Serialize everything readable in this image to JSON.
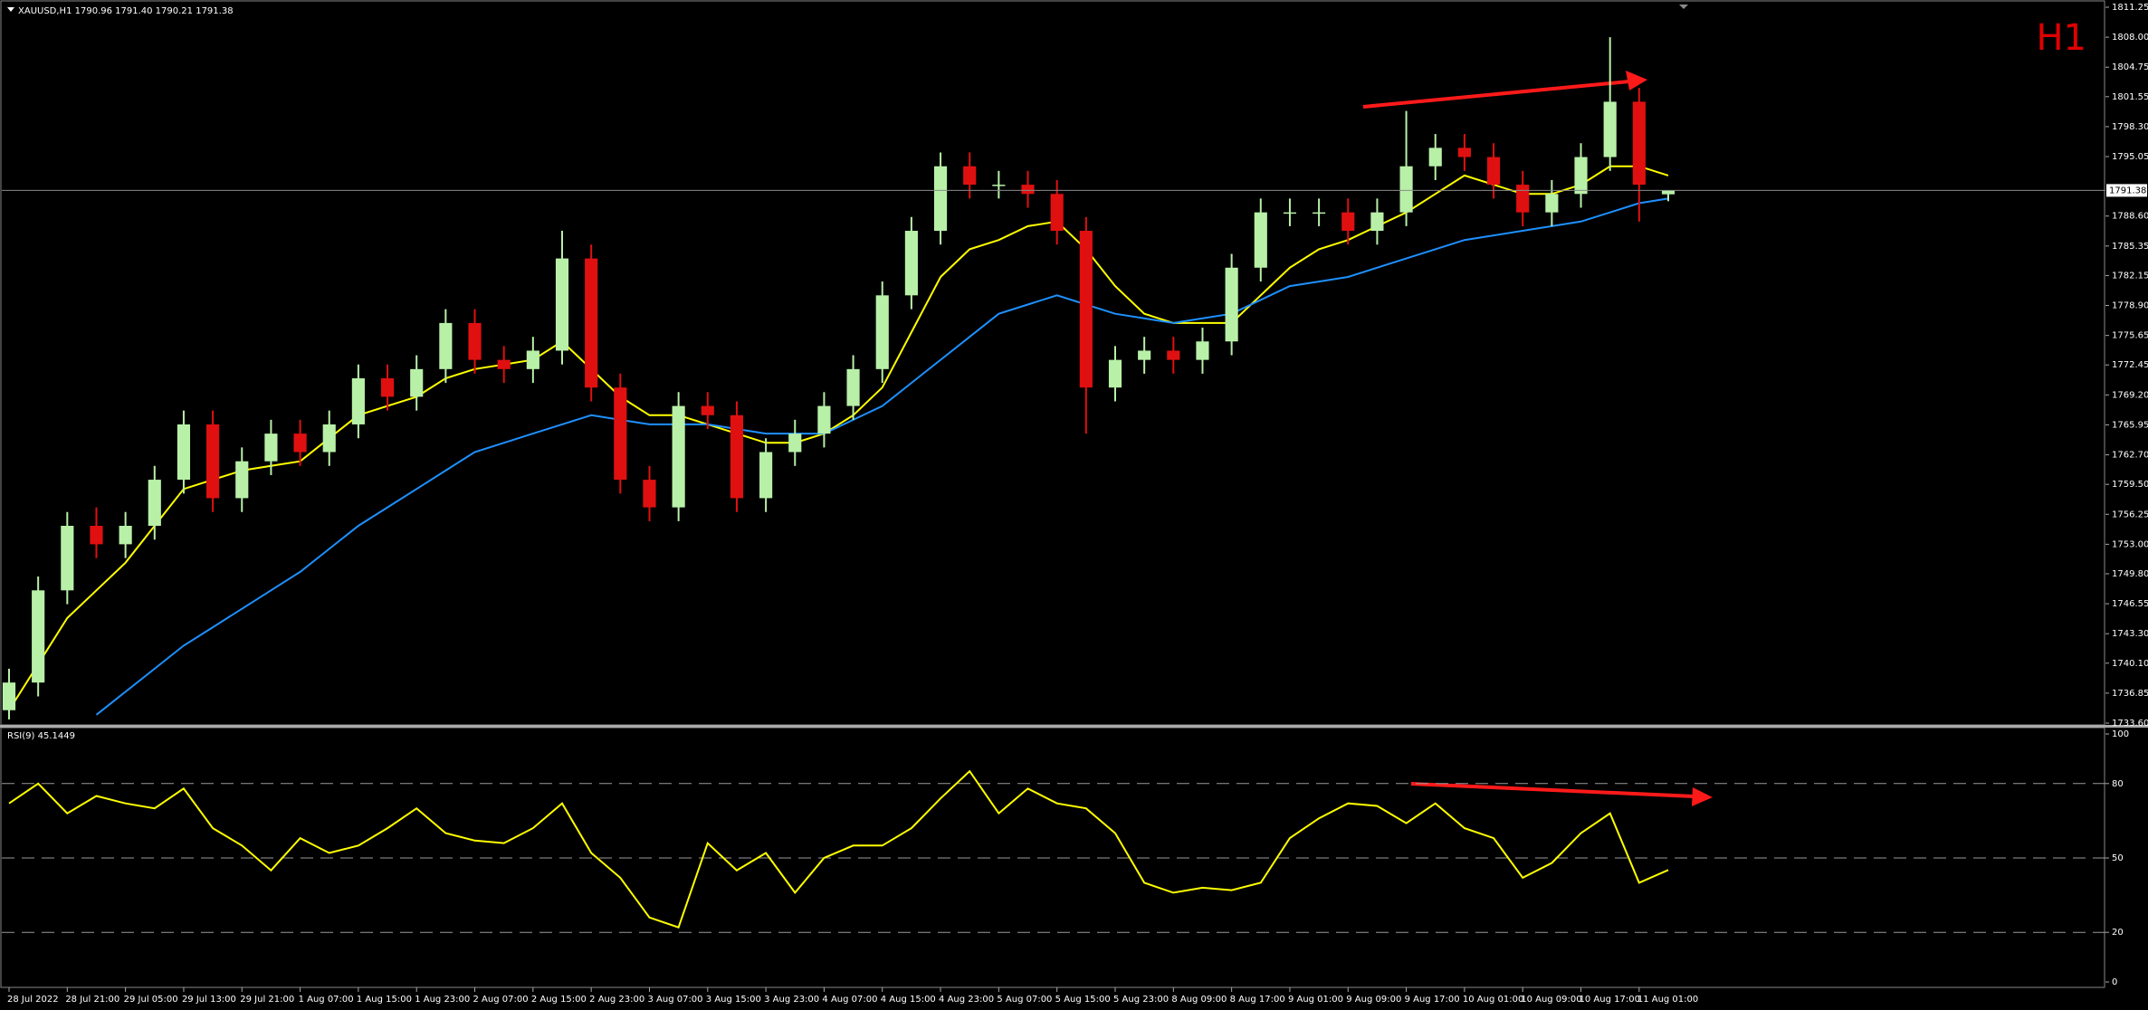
{
  "chart_data": [
    {
      "type": "candlestick",
      "title": "XAUUSD,H1  1790.96 1791.40 1790.21 1791.38",
      "annotation": "H1",
      "categories": [
        "28 Jul 2022",
        null,
        "28 Jul 21:00",
        null,
        "29 Jul 05:00",
        null,
        "29 Jul 13:00",
        null,
        "29 Jul 21:00",
        null,
        "1 Aug 07:00",
        null,
        "1 Aug 15:00",
        null,
        "1 Aug 23:00",
        null,
        "2 Aug 07:00",
        null,
        "2 Aug 15:00",
        null,
        "2 Aug 23:00",
        null,
        "3 Aug 07:00",
        null,
        "3 Aug 15:00",
        null,
        "3 Aug 23:00",
        null,
        "4 Aug 07:00",
        null,
        "4 Aug 15:00",
        null,
        "4 Aug 23:00",
        null,
        "5 Aug 07:00",
        null,
        "5 Aug 15:00",
        null,
        "5 Aug 23:00",
        null,
        "8 Aug 09:00",
        null,
        "8 Aug 17:00",
        null,
        "9 Aug 01:00",
        null,
        "9 Aug 09:00",
        null,
        "9 Aug 17:00",
        null,
        "10 Aug 01:00",
        null,
        "10 Aug 09:00",
        null,
        "10 Aug 17:00",
        null,
        "11 Aug 01:00",
        null
      ],
      "open": [
        1735,
        1738,
        1748,
        1755,
        1753,
        1755,
        1760,
        1766,
        1758,
        1762,
        1765,
        1763,
        1766,
        1771,
        1769,
        1772,
        1777,
        1773,
        1772,
        1774,
        1784,
        1770,
        1760,
        1757,
        1768,
        1767,
        1758,
        1763,
        1765,
        1768,
        1772,
        1780,
        1787,
        1794,
        1792,
        1792,
        1791,
        1787,
        1770,
        1773,
        1774,
        1773,
        1775,
        1783,
        1789,
        1789,
        1789,
        1787,
        1789,
        1794,
        1796,
        1795,
        1792,
        1789,
        1791,
        1795,
        1801,
        1790.96
      ],
      "high": [
        1739.5,
        1749.5,
        1756.5,
        1757,
        1756.5,
        1761.5,
        1767.5,
        1767.5,
        1763.5,
        1766.5,
        1766.5,
        1767.5,
        1772.5,
        1772.5,
        1773.5,
        1778.5,
        1778.5,
        1774.5,
        1775.5,
        1787,
        1785.5,
        1771.5,
        1761.5,
        1769.5,
        1769.5,
        1768.5,
        1764.5,
        1766.5,
        1769.5,
        1773.5,
        1781.5,
        1788.5,
        1795.5,
        1795.5,
        1793.5,
        1793.5,
        1792.5,
        1788.5,
        1774.5,
        1775.5,
        1775.5,
        1776.5,
        1784.5,
        1790.5,
        1790.5,
        1790.5,
        1790.5,
        1790.5,
        1800,
        1797.5,
        1797.5,
        1796.5,
        1793.5,
        1792.5,
        1796.5,
        1808,
        1802.5,
        1791.4
      ],
      "low": [
        1734,
        1736.5,
        1746.5,
        1751.5,
        1751.5,
        1753.5,
        1758.5,
        1756.5,
        1756.5,
        1760.5,
        1761.5,
        1761.5,
        1764.5,
        1767.5,
        1767.5,
        1770.5,
        1771.5,
        1770.5,
        1770.5,
        1772.5,
        1768.5,
        1758.5,
        1755.5,
        1755.5,
        1765.5,
        1756.5,
        1756.5,
        1761.5,
        1763.5,
        1766.5,
        1770.5,
        1778.5,
        1785.5,
        1790.5,
        1790.5,
        1789.5,
        1785.5,
        1765,
        1768.5,
        1771.5,
        1771.5,
        1771.5,
        1773.5,
        1781.5,
        1787.5,
        1787.5,
        1785.5,
        1785.5,
        1787.5,
        1792.5,
        1793.5,
        1790.5,
        1787.5,
        1787.5,
        1789.5,
        1793.5,
        1788,
        1790.21
      ],
      "close": [
        1738,
        1748,
        1755,
        1753,
        1755,
        1760,
        1766,
        1758,
        1762,
        1765,
        1763,
        1766,
        1771,
        1769,
        1772,
        1777,
        1773,
        1772,
        1774,
        1784,
        1770,
        1760,
        1757,
        1768,
        1767,
        1758,
        1763,
        1765,
        1768,
        1772,
        1780,
        1787,
        1794,
        1792,
        1792,
        1791,
        1787,
        1770,
        1773,
        1774,
        1773,
        1775,
        1783,
        1789,
        1789,
        1789,
        1787,
        1789,
        1794,
        1796,
        1795,
        1792,
        1789,
        1791,
        1795,
        1801,
        1792,
        1791.38
      ],
      "up_color": "#b8f0a8",
      "down_color": "#e01010",
      "series": [
        {
          "color": "#ffff00",
          "values": [
            1735,
            1740,
            1745,
            1748,
            1751,
            1755,
            1759,
            1760,
            1761,
            1761.5,
            1762,
            1764.5,
            1767,
            1768,
            1769,
            1771,
            1772,
            1772.5,
            1773,
            1775,
            1772,
            1769,
            1767,
            1767,
            1766,
            1765,
            1764,
            1764,
            1765,
            1767,
            1770,
            1776,
            1782,
            1785,
            1786,
            1787.5,
            1788,
            1785,
            1781,
            1778,
            1777,
            1777,
            1777,
            1780,
            1783,
            1785,
            1786,
            1787.5,
            1789,
            1791,
            1793,
            1792,
            1791,
            1791,
            1792,
            1794,
            1794,
            1793
          ]
        },
        {
          "color": "#1e90ff",
          "values": [
            null,
            null,
            null,
            1734.5,
            1737,
            1739.5,
            1742,
            1744,
            1746,
            1748,
            1750,
            1752.5,
            1755,
            1757,
            1759,
            1761,
            1763,
            1764,
            1765,
            1766,
            1767,
            1766.5,
            1766,
            1766,
            1766,
            1765.5,
            1765,
            1765,
            1765,
            1766.5,
            1768,
            1770.5,
            1773,
            1775.5,
            1778,
            1779,
            1780,
            1779,
            1778,
            1777.5,
            1777,
            1777.5,
            1778,
            1779.5,
            1781,
            1781.5,
            1782,
            1783,
            1784,
            1785,
            1786,
            1786.5,
            1787,
            1787.5,
            1788,
            1789,
            1790,
            1790.5
          ]
        }
      ],
      "current_price": 1791.38,
      "ylim": [
        1733.6,
        1811.25
      ],
      "yticks": [
        1811.25,
        {
          "value": 1808.0,
          "label": "1808.00"
        },
        1804.75,
        1801.55,
        {
          "value": 1798.3,
          "label": "1798.30"
        },
        1795.05,
        {
          "value": 1788.6,
          "label": "1788.60"
        },
        1785.35,
        1782.15,
        {
          "value": 1778.9,
          "label": "1778.90"
        },
        1775.65,
        1772.45,
        {
          "value": 1769.2,
          "label": "1769.20"
        },
        1765.95,
        {
          "value": 1762.7,
          "label": "1762.70"
        },
        {
          "value": 1759.5,
          "label": "1759.50"
        },
        1756.25,
        {
          "value": 1753.0,
          "label": "1753.00"
        },
        {
          "value": 1749.8,
          "label": "1749.80"
        },
        1746.55,
        {
          "value": 1743.3,
          "label": "1743.30"
        },
        {
          "value": 1740.1,
          "label": "1740.10"
        },
        1736.85,
        {
          "value": 1733.6,
          "label": "1733.60"
        }
      ]
    },
    {
      "type": "line",
      "title": "RSI(9) 45.1449",
      "color": "#ffff00",
      "values": [
        72,
        80,
        68,
        75,
        72,
        70,
        78,
        62,
        55,
        45,
        58,
        52,
        55,
        62,
        70,
        60,
        57,
        56,
        62,
        72,
        52,
        42,
        26,
        22,
        56,
        45,
        52,
        36,
        50,
        55,
        55,
        62,
        74,
        85,
        68,
        78,
        72,
        70,
        60,
        40,
        36,
        38,
        37,
        40,
        58,
        66,
        72,
        71,
        64,
        72,
        62,
        58,
        42,
        48,
        60,
        68,
        40,
        45.1449
      ],
      "ylim": [
        0,
        100
      ],
      "yticks": [
        100,
        80,
        50,
        20,
        0
      ]
    }
  ]
}
